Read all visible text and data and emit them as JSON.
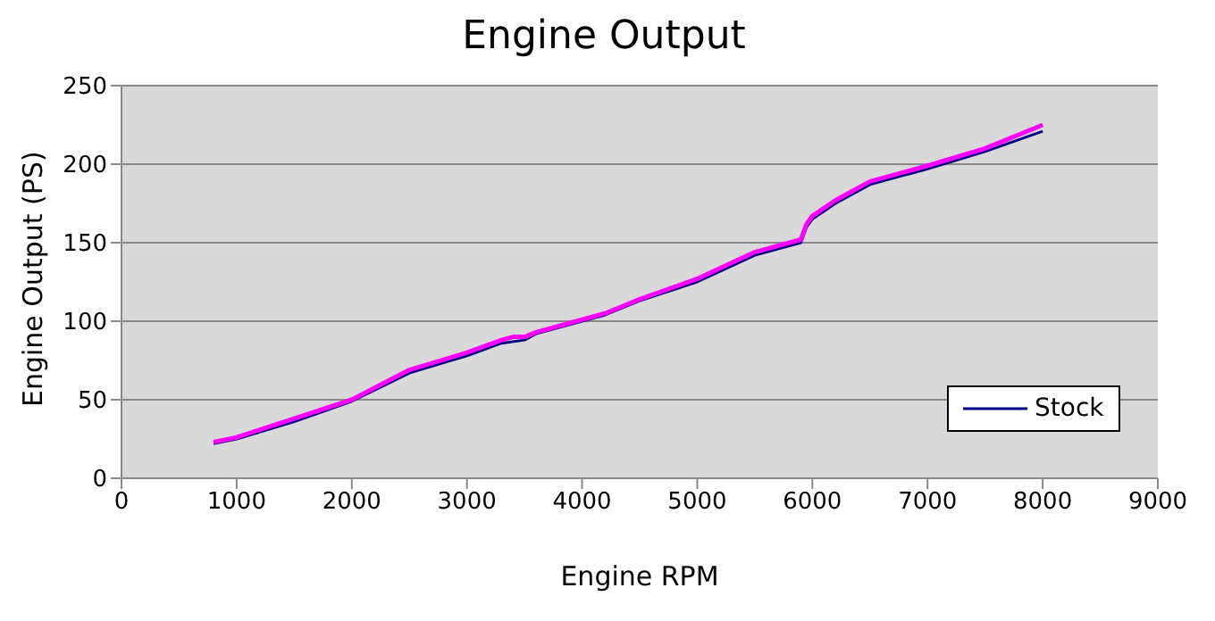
{
  "chart_data": {
    "type": "line",
    "title": "Engine Output",
    "xlabel": "Engine RPM",
    "ylabel": "Engine Output (PS)",
    "xlim": [
      0,
      9000
    ],
    "xticks": [
      0,
      1000,
      2000,
      3000,
      4000,
      5000,
      6000,
      7000,
      8000,
      9000
    ],
    "ylim": [
      0,
      250
    ],
    "yticks": [
      0,
      50,
      100,
      150,
      200,
      250
    ],
    "grid": "y",
    "legend": "bottom right",
    "marker": "none",
    "line_style": "solid",
    "series": [
      {
        "name": "Stock",
        "color": "#000080",
        "x": [
          800,
          1000,
          1500,
          2000,
          2500,
          3000,
          3300,
          3500,
          3600,
          4000,
          4200,
          4500,
          5000,
          5500,
          5800,
          5900,
          5950,
          6000,
          6200,
          6500,
          7000,
          7500,
          8000
        ],
        "values": [
          22,
          25,
          36,
          49,
          67,
          78,
          86,
          88,
          92,
          100,
          104,
          113,
          125,
          142,
          148,
          150,
          160,
          165,
          175,
          187,
          197,
          208,
          221
        ]
      },
      {
        "color": "#ff00ff",
        "x": [
          800,
          1000,
          1500,
          2000,
          2500,
          3000,
          3300,
          3400,
          3500,
          3600,
          4000,
          4200,
          4500,
          5000,
          5500,
          5800,
          5900,
          5950,
          6000,
          6200,
          6500,
          7000,
          7500,
          8000
        ],
        "values": [
          23,
          26,
          38,
          50,
          69,
          80,
          88,
          90,
          90,
          93,
          101,
          105,
          114,
          127,
          144,
          150,
          152,
          162,
          167,
          177,
          189,
          199,
          210,
          225
        ]
      }
    ]
  }
}
